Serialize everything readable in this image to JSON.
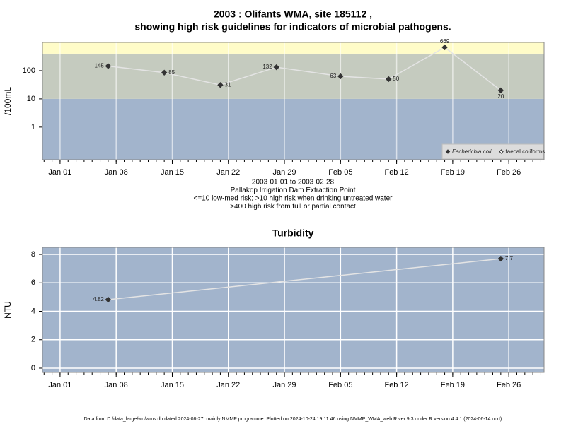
{
  "chart_data": [
    {
      "type": "line",
      "title": [
        "2003 : Olifants WMA, site 185112 ,",
        "showing high risk guidelines for indicators of microbial pathogens."
      ],
      "notes": [
        "2003-01-01 to 2003-02-28",
        "Pallakop Irrigation Dam Extraction Point",
        "<=10 low-med risk; >10 high risk when drinking untreated water",
        ">400 high risk from full or partial contact"
      ],
      "y_label": "/100mL",
      "log_y": true,
      "grid": "x",
      "minor_xticks": true,
      "x": [
        7,
        14,
        21,
        28,
        36,
        42,
        49,
        56
      ],
      "series": [
        {
          "name": "Escherichia coli",
          "color": "#333333",
          "marker": "filled",
          "line_color": "#e4e4e4",
          "values": [
            145,
            85,
            31,
            132,
            63,
            50,
            669,
            20
          ]
        },
        {
          "name": "faecal coliforms",
          "color": "#333333",
          "marker": "open",
          "line_color": "#e4e4e4",
          "values": [
            null,
            null,
            null,
            null,
            null,
            null,
            null,
            null
          ]
        }
      ],
      "bands": [
        {
          "from": 0.07,
          "to": 10,
          "color": "#a2b4cc"
        },
        {
          "from": 10,
          "to": 400,
          "color": "#c5cbbf"
        },
        {
          "from": 400,
          "to": 1000,
          "color": "#fffcc8"
        }
      ],
      "xlim": [
        -1.2,
        61.4
      ],
      "ylim": [
        0.07,
        1000
      ],
      "xticks": [
        {
          "value": 1,
          "label": "Jan 01"
        },
        {
          "value": 8,
          "label": "Jan 08"
        },
        {
          "value": 15,
          "label": "Jan 15"
        },
        {
          "value": 22,
          "label": "Jan 22"
        },
        {
          "value": 29,
          "label": "Jan 29"
        },
        {
          "value": 36,
          "label": "Feb 05"
        },
        {
          "value": 43,
          "label": "Feb 12"
        },
        {
          "value": 50,
          "label": "Feb 19"
        },
        {
          "value": 57,
          "label": "Feb 26"
        }
      ],
      "yticks": [
        1,
        10,
        100
      ],
      "legend": "bottom-right"
    },
    {
      "type": "line",
      "title": [
        "Turbidity"
      ],
      "y_label": "NTU",
      "grid": "both",
      "minor_xticks": true,
      "background": "#a2b4cc",
      "x": [
        7,
        56
      ],
      "series": [
        {
          "name": "Turbidity",
          "color": "#333333",
          "marker": "filled",
          "line_color": "#e4e4e4",
          "values": [
            4.82,
            7.7
          ]
        }
      ],
      "xlim": [
        -1.2,
        61.4
      ],
      "ylim": [
        -0.3,
        8.5
      ],
      "xticks": [
        {
          "value": 1,
          "label": "Jan 01"
        },
        {
          "value": 8,
          "label": "Jan 08"
        },
        {
          "value": 15,
          "label": "Jan 15"
        },
        {
          "value": 22,
          "label": "Jan 22"
        },
        {
          "value": 29,
          "label": "Jan 29"
        },
        {
          "value": 36,
          "label": "Feb 05"
        },
        {
          "value": 43,
          "label": "Feb 12"
        },
        {
          "value": 50,
          "label": "Feb 19"
        },
        {
          "value": 57,
          "label": "Feb 26"
        }
      ],
      "yticks": [
        0,
        2,
        4,
        6,
        8
      ]
    }
  ],
  "footer": "Data from D:/data_large/wq/wms.db dated 2024-08-27, mainly NMMP programme. Plotted on 2024-10-24 19:11:46 using NMMP_WMA_web.R ver 9.3 under R version 4.4.1 (2024-06-14 ucrt)"
}
